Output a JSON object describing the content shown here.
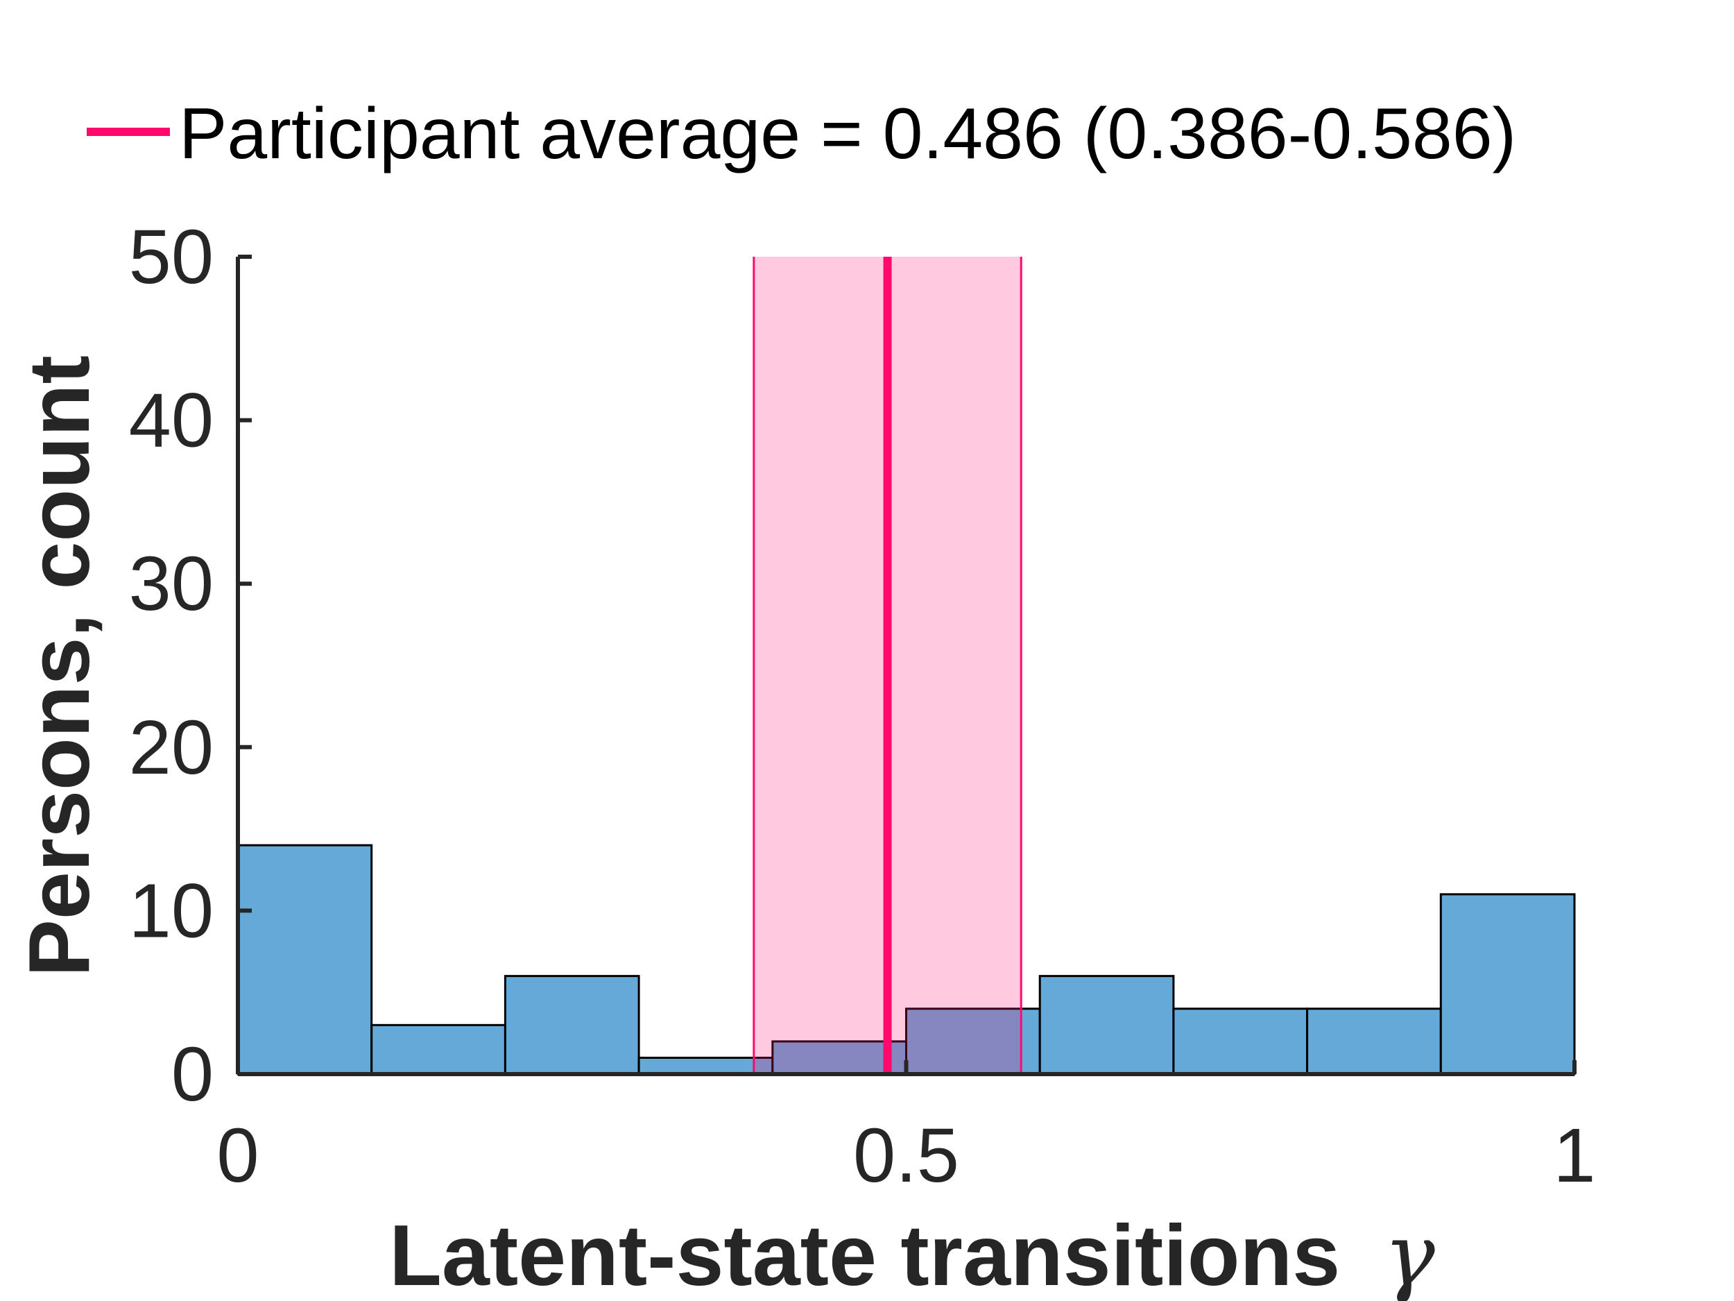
{
  "chart_data": {
    "type": "bar",
    "subtype": "histogram",
    "title": "",
    "xlabel": "Latent-state transitions",
    "xlabel_symbol": "γ",
    "ylabel": "Persons, count",
    "xlim": [
      0,
      1
    ],
    "ylim": [
      0,
      50
    ],
    "xticks": [
      0,
      0.5,
      1
    ],
    "xtick_labels": [
      "0",
      "0.5",
      "1"
    ],
    "yticks": [
      0,
      10,
      20,
      30,
      40,
      50
    ],
    "ytick_labels": [
      "0",
      "10",
      "20",
      "30",
      "40",
      "50"
    ],
    "grid": false,
    "bins": [
      {
        "x0": 0.0,
        "x1": 0.1,
        "count": 14
      },
      {
        "x0": 0.1,
        "x1": 0.2,
        "count": 3
      },
      {
        "x0": 0.2,
        "x1": 0.3,
        "count": 6
      },
      {
        "x0": 0.3,
        "x1": 0.4,
        "count": 1
      },
      {
        "x0": 0.4,
        "x1": 0.5,
        "count": 2
      },
      {
        "x0": 0.5,
        "x1": 0.6,
        "count": 4
      },
      {
        "x0": 0.6,
        "x1": 0.7,
        "count": 6
      },
      {
        "x0": 0.7,
        "x1": 0.8,
        "count": 4
      },
      {
        "x0": 0.8,
        "x1": 0.9,
        "count": 4
      },
      {
        "x0": 0.9,
        "x1": 1.0,
        "count": 11
      }
    ],
    "reference": {
      "label": "Participant average = 0.486 (0.386-0.586)",
      "mean": 0.486,
      "ci": [
        0.386,
        0.586
      ]
    },
    "legend_position": "top-center",
    "colors": {
      "bar_fill": "#65a9d8",
      "bar_edge": "#000000",
      "reference_line": "#ff0a6c",
      "ci_fill": "#fcc6df",
      "axis": "#262626"
    }
  }
}
